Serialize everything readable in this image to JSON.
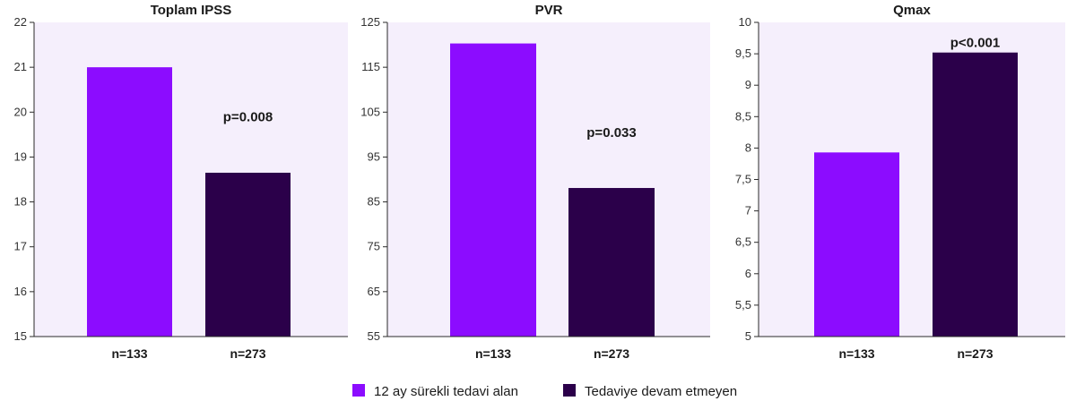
{
  "colors": {
    "series_a": "#8c0cff",
    "series_b": "#2b004a",
    "plot_bg": "#f5effc",
    "axis": "#2a2a2a"
  },
  "legend": [
    {
      "label": "12 ay sürekli tedavi alan",
      "color": "#8c0cff"
    },
    {
      "label": "Tedaviye devam etmeyen",
      "color": "#2b004a"
    }
  ],
  "chart_data": [
    {
      "type": "bar",
      "title": "Toplam IPSS",
      "categories": [
        "n=133",
        "n=273"
      ],
      "series": [
        {
          "name": "12 ay sürekli tedavi alan",
          "values": [
            21.0,
            null
          ]
        },
        {
          "name": "Tedaviye devam etmeyen",
          "values": [
            null,
            18.65
          ]
        }
      ],
      "values": [
        21.0,
        18.65
      ],
      "ylim": [
        15,
        22
      ],
      "yticks": [
        "15",
        "16",
        "17",
        "18",
        "19",
        "20",
        "21",
        "22"
      ],
      "annotation": "p=0.008",
      "annotation_y": 19.9
    },
    {
      "type": "bar",
      "title": "PVR",
      "categories": [
        "n=133",
        "n=273"
      ],
      "series": [
        {
          "name": "12 ay sürekli tedavi alan",
          "values": [
            120.3,
            null
          ]
        },
        {
          "name": "Tedaviye devam etmeyen",
          "values": [
            null,
            88.1
          ]
        }
      ],
      "values": [
        120.3,
        88.1
      ],
      "ylim": [
        55,
        125
      ],
      "yticks": [
        "55",
        "65",
        "75",
        "85",
        "95",
        "105",
        "115",
        "125"
      ],
      "annotation": "p=0.033",
      "annotation_y": 100.5
    },
    {
      "type": "bar",
      "title": "Qmax",
      "categories": [
        "n=133",
        "n=273"
      ],
      "series": [
        {
          "name": "12 ay sürekli tedavi alan",
          "values": [
            7.93,
            null
          ]
        },
        {
          "name": "Tedaviye devam etmeyen",
          "values": [
            null,
            9.52
          ]
        }
      ],
      "values": [
        7.93,
        9.52
      ],
      "ylim": [
        5,
        10
      ],
      "yticks": [
        "5",
        "5,5",
        "6",
        "6,5",
        "7",
        "7,5",
        "8",
        "8,5",
        "9",
        "9,5",
        "10"
      ],
      "annotation": "p<0.001",
      "annotation_y": 9.68
    }
  ]
}
